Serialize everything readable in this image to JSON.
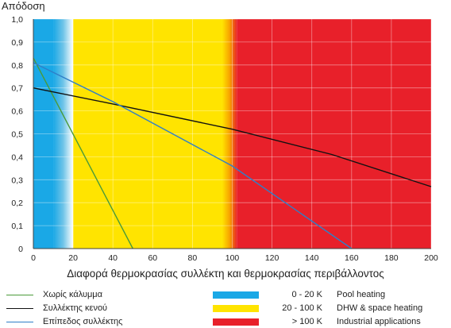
{
  "chart_data": {
    "type": "line",
    "ylabel": "Απόδοση",
    "xlabel": "Διαφορά θερμοκρασίας συλλέκτη και θερμοκρασίας περιβάλλοντος",
    "xlim": [
      0,
      200
    ],
    "ylim": [
      0,
      1.0
    ],
    "x_ticks": [
      "0",
      "20",
      "40",
      "60",
      "80",
      "100",
      "120",
      "140",
      "160",
      "180",
      "200"
    ],
    "y_ticks": [
      "0",
      "0,1",
      "0,2",
      "0,3",
      "0,4",
      "0,5",
      "0,6",
      "0,7",
      "0,8",
      "0,9",
      "1,0"
    ],
    "grid": true,
    "series": [
      {
        "name": "Χωρίς κάλυμμα",
        "color": "#4a9a3a",
        "x": [
          0,
          50
        ],
        "y": [
          0.83,
          0
        ]
      },
      {
        "name": "Συλλέκτης κενού",
        "color": "#111111",
        "x": [
          0,
          40,
          100,
          150,
          200
        ],
        "y": [
          0.7,
          0.63,
          0.52,
          0.41,
          0.27
        ]
      },
      {
        "name": "Επίπεδος συλλέκτης",
        "color": "#2f7fc8",
        "x": [
          0,
          40,
          100,
          160
        ],
        "y": [
          0.81,
          0.64,
          0.36,
          0
        ]
      }
    ],
    "bands": [
      {
        "range": "0 - 20 K",
        "label": "Pool heating",
        "from": 0,
        "to": 20,
        "color": "#1aa8e6"
      },
      {
        "range": "20 - 100 K",
        "label": "DHW & space heating",
        "from": 20,
        "to": 100,
        "color": "#ffe400"
      },
      {
        "range": "> 100 K",
        "label": "Industrial applications",
        "from": 100,
        "to": 200,
        "color": "#e8202a"
      }
    ]
  }
}
